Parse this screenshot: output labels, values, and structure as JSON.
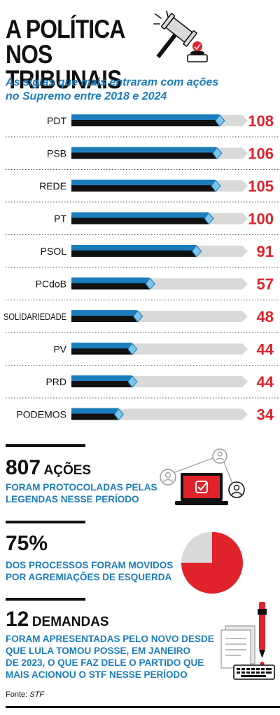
{
  "header": {
    "title_line1": "A POLÍTICA",
    "title_line2": "NOS TRIBUNAIS",
    "subtitle_line1": "As siglas que mais entraram com ações",
    "subtitle_line2": "no Supremo entre 2018 e 2024"
  },
  "chart_data": {
    "type": "bar",
    "categories": [
      "PDT",
      "PSB",
      "REDE",
      "PT",
      "PSOL",
      "PCdoB",
      "SOLIDARIEDADE",
      "PV",
      "PRD",
      "PODEMOS"
    ],
    "values": [
      108,
      106,
      105,
      100,
      91,
      57,
      48,
      44,
      44,
      34
    ],
    "xlim": [
      0,
      125
    ],
    "orientation": "horizontal",
    "value_labels": true
  },
  "colors": {
    "blue": "#1c7dbd",
    "red": "#e0222a",
    "track": "#d9d9d9",
    "dark": "#111111"
  },
  "stats": {
    "acoes": {
      "number": "807",
      "word": "AÇÕES",
      "line1": "FORAM PROTOCOLADAS PELAS",
      "line2": "LEGENDAS NESSE PERÍODO"
    },
    "percent": {
      "number": "75%",
      "line1": "DOS PROCESSOS FORAM MOVIDOS",
      "line2": "POR AGREMIAÇÕES DE ESQUERDA",
      "pie_fraction": 0.75
    },
    "demandas": {
      "number": "12",
      "word": "DEMANDAS",
      "line1": "FORAM APRESENTADAS PELO NOVO DESDE",
      "line2": "QUE LULA TOMOU POSSE, EM JANEIRO",
      "line3": "DE 2023, O QUE FAZ DELE O PARTIDO QUE",
      "line4": "MAIS ACIONOU O STF NESSE PERÍODO"
    }
  },
  "footer": {
    "source_label": "Fonte:",
    "source_value": "STF"
  },
  "icons": [
    "gavel-icon",
    "laptop-check-icon",
    "user-network-icon",
    "pie-icon",
    "document-pen-keyboard-icon"
  ]
}
